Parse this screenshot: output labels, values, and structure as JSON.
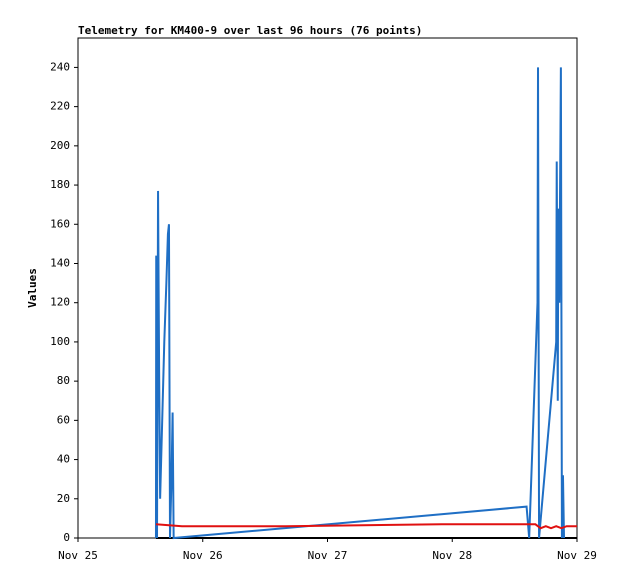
{
  "chart_data": {
    "type": "line",
    "title": "Telemetry for KM400-9 over last 96 hours (76 points)",
    "y_label": "Values",
    "xlim": [
      0,
      96
    ],
    "xticks": [
      {
        "value": 0,
        "label": "Nov 25"
      },
      {
        "value": 24,
        "label": "Nov 26"
      },
      {
        "value": 48,
        "label": "Nov 27"
      },
      {
        "value": 72,
        "label": "Nov 28"
      },
      {
        "value": 96,
        "label": "Nov 29"
      }
    ],
    "ylim": [
      0,
      255
    ],
    "yticks": [
      0,
      20,
      40,
      60,
      80,
      100,
      120,
      140,
      160,
      180,
      200,
      220,
      240
    ],
    "grid": false,
    "series": [
      {
        "color": "#000000",
        "x": [
          15,
          96
        ],
        "values": [
          0,
          0
        ]
      },
      {
        "color": "#1f6fc5",
        "x": [
          15.0,
          15.05,
          15.2,
          15.4,
          15.6,
          15.8,
          16.2,
          16.6,
          17.0,
          17.3,
          17.5,
          17.7,
          18.0,
          18.2,
          18.4,
          86.3,
          86.8,
          88.4,
          88.5,
          88.7,
          92.0,
          92.1,
          92.3,
          92.4,
          92.6,
          92.9,
          93.1,
          93.3,
          93.5
        ],
        "values": [
          0,
          144,
          0,
          177,
          88,
          20,
          60,
          100,
          130,
          155,
          160,
          0,
          32,
          64,
          0,
          16,
          0,
          120,
          240,
          0,
          100,
          192,
          70,
          168,
          120,
          240,
          0,
          32,
          0
        ]
      },
      {
        "color": "#e01010",
        "x": [
          15,
          20,
          40,
          70,
          88,
          89,
          90,
          91,
          92,
          93,
          94,
          96
        ],
        "values": [
          7,
          6,
          6,
          7,
          7,
          5,
          6,
          5,
          6,
          5,
          6,
          6
        ]
      }
    ]
  }
}
